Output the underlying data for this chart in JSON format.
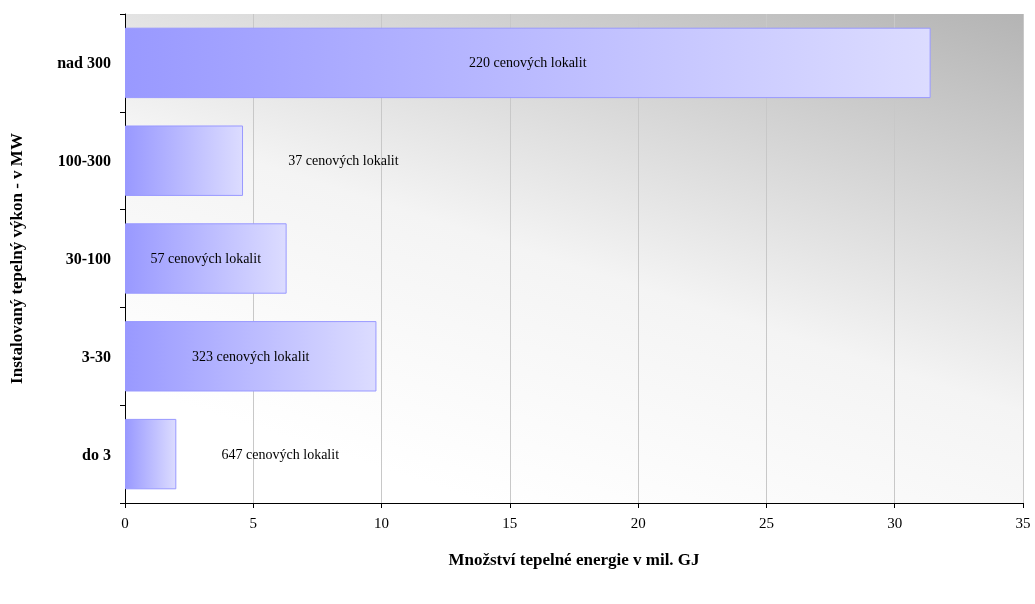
{
  "chart_data": {
    "type": "bar",
    "orientation": "horizontal",
    "xlabel": "Množství tepelné energie v mil. GJ",
    "ylabel": "Instalovaný tepelný výkon - v MW",
    "categories": [
      "nad 300",
      "100-300",
      "30-100",
      "3-30",
      "do 3"
    ],
    "values": [
      31.4,
      4.6,
      6.3,
      9.8,
      2.0
    ],
    "color": "#9999ff",
    "xlim": [
      0,
      35
    ],
    "xticks": [
      0,
      5,
      10,
      15,
      20,
      25,
      30,
      35
    ],
    "grid": "x",
    "annotations": [
      "220 cenových lokalit",
      "37 cenových lokalit",
      "57 cenových lokalit",
      "323 cenových lokalit",
      "647 cenových lokalit"
    ]
  }
}
